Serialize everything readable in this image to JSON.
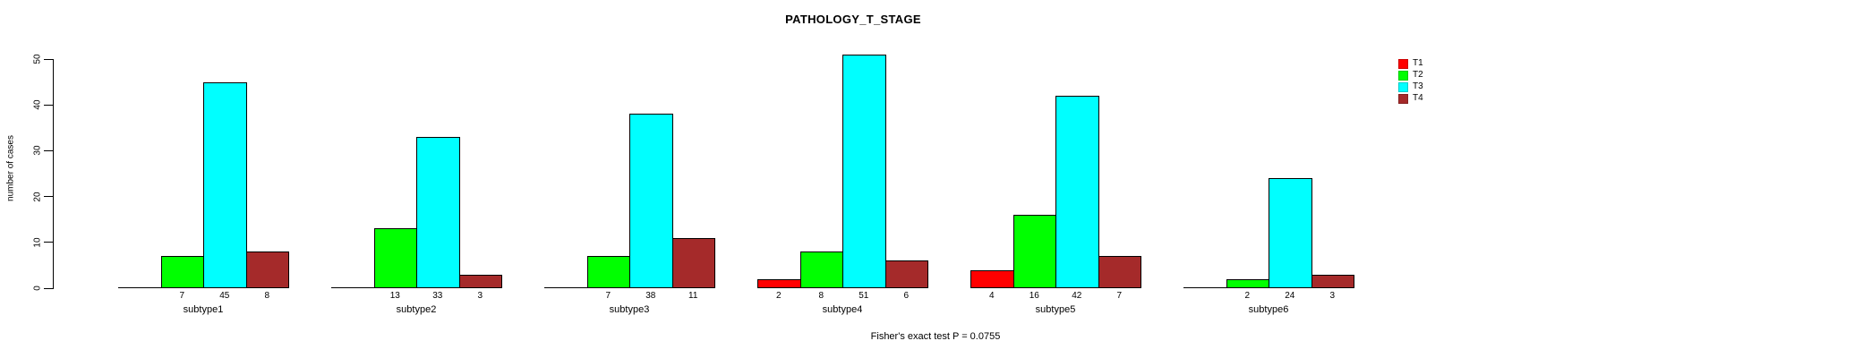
{
  "title": "PATHOLOGY_T_STAGE",
  "footer_note": "Fisher's exact test P = 0.0755",
  "colors": {
    "background": "#FFFFFF",
    "axis": "#000000",
    "text": "#000000",
    "t1": "#FF0000",
    "t2": "#00FF00",
    "t3": "#00FFFF",
    "t4": "#A52A2A"
  },
  "chart_data": {
    "type": "bar",
    "title": "PATHOLOGY_T_STAGE",
    "xlabel": "",
    "ylabel": "number of cases",
    "ylim": [
      0,
      50
    ],
    "yticks": [
      0,
      10,
      20,
      30,
      40,
      50
    ],
    "grid": false,
    "legend_position": "right",
    "annotation": "Fisher's exact test P = 0.0755",
    "categories": [
      "subtype1",
      "subtype2",
      "subtype3",
      "subtype4",
      "subtype5",
      "subtype6"
    ],
    "series": [
      {
        "name": "T1",
        "color": "#FF0000",
        "values": [
          0,
          0,
          0,
          2,
          4,
          0
        ]
      },
      {
        "name": "T2",
        "color": "#00FF00",
        "values": [
          7,
          13,
          7,
          8,
          16,
          2
        ]
      },
      {
        "name": "T3",
        "color": "#00FFFF",
        "values": [
          45,
          33,
          38,
          51,
          42,
          24
        ]
      },
      {
        "name": "T4",
        "color": "#A52A2A",
        "values": [
          8,
          3,
          11,
          6,
          7,
          3
        ]
      }
    ],
    "bar_value_labels_shown": true,
    "zero_value_labels_blank": true
  }
}
